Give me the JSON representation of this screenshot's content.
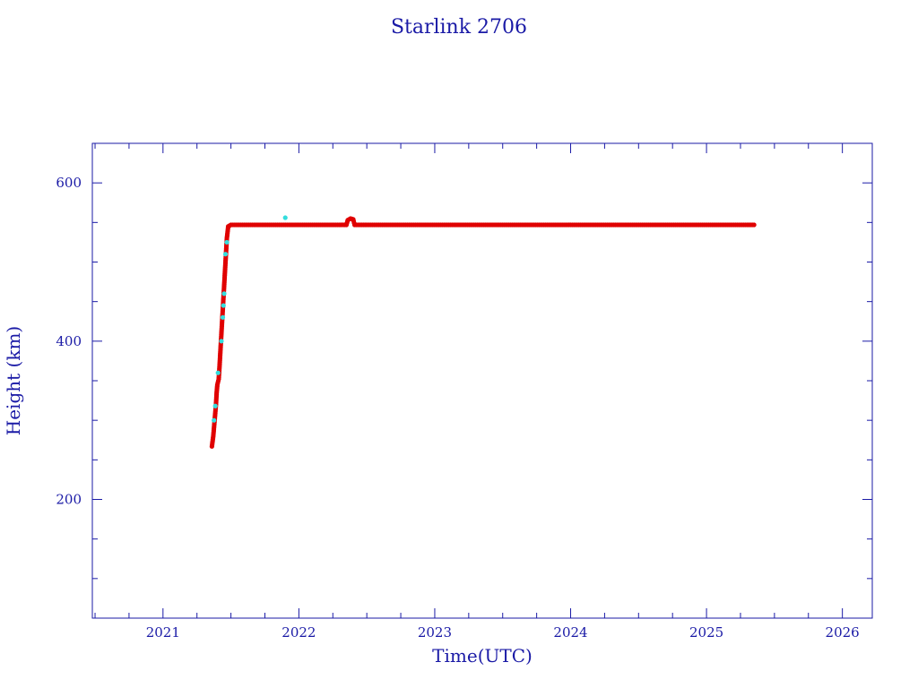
{
  "chart_data": {
    "type": "scatter",
    "title": "Starlink 2706",
    "xlabel": "Time(UTC)",
    "ylabel": "Height (km)",
    "xlim": [
      2020.48,
      2026.22
    ],
    "ylim": [
      50,
      650
    ],
    "x_ticks": [
      2021,
      2022,
      2023,
      2024,
      2025,
      2026
    ],
    "y_ticks": [
      200,
      400,
      600
    ],
    "grid": false,
    "colors": {
      "axis": "#1a1aa6",
      "primary": "#e00000",
      "secondary": "#33dddd"
    },
    "series": [
      {
        "color": "#e00000",
        "points": [
          [
            2021.36,
            267
          ],
          [
            2021.37,
            280
          ],
          [
            2021.38,
            300
          ],
          [
            2021.39,
            320
          ],
          [
            2021.395,
            335
          ],
          [
            2021.4,
            345
          ],
          [
            2021.41,
            352
          ],
          [
            2021.415,
            365
          ],
          [
            2021.42,
            380
          ],
          [
            2021.425,
            395
          ],
          [
            2021.43,
            410
          ],
          [
            2021.435,
            425
          ],
          [
            2021.44,
            440
          ],
          [
            2021.445,
            455
          ],
          [
            2021.45,
            470
          ],
          [
            2021.455,
            485
          ],
          [
            2021.46,
            500
          ],
          [
            2021.465,
            515
          ],
          [
            2021.47,
            530
          ],
          [
            2021.48,
            545
          ],
          [
            2021.5,
            547
          ],
          [
            2021.6,
            547
          ],
          [
            2021.7,
            547
          ],
          [
            2021.8,
            547
          ],
          [
            2021.9,
            547
          ],
          [
            2022.0,
            547
          ],
          [
            2022.1,
            547
          ],
          [
            2022.2,
            547
          ],
          [
            2022.3,
            547
          ],
          [
            2022.35,
            547
          ],
          [
            2022.36,
            553
          ],
          [
            2022.38,
            555
          ],
          [
            2022.4,
            554
          ],
          [
            2022.41,
            547
          ],
          [
            2022.5,
            547
          ],
          [
            2022.6,
            547
          ],
          [
            2022.7,
            547
          ],
          [
            2022.8,
            547
          ],
          [
            2022.9,
            547
          ],
          [
            2023.0,
            547
          ],
          [
            2023.1,
            547
          ],
          [
            2023.2,
            547
          ],
          [
            2023.3,
            547
          ],
          [
            2023.4,
            547
          ],
          [
            2023.5,
            547
          ],
          [
            2023.6,
            547
          ],
          [
            2023.7,
            547
          ],
          [
            2023.8,
            547
          ],
          [
            2023.9,
            547
          ],
          [
            2024.0,
            547
          ],
          [
            2024.1,
            547
          ],
          [
            2024.2,
            547
          ],
          [
            2024.3,
            547
          ],
          [
            2024.4,
            547
          ],
          [
            2024.5,
            547
          ],
          [
            2024.6,
            547
          ],
          [
            2024.7,
            547
          ],
          [
            2024.8,
            547
          ],
          [
            2024.9,
            547
          ],
          [
            2025.0,
            547
          ],
          [
            2025.1,
            547
          ],
          [
            2025.2,
            547
          ],
          [
            2025.3,
            547
          ],
          [
            2025.35,
            547
          ]
        ]
      },
      {
        "color": "#33dddd",
        "points": [
          [
            2021.375,
            300
          ],
          [
            2021.385,
            318
          ],
          [
            2021.405,
            360
          ],
          [
            2021.43,
            400
          ],
          [
            2021.44,
            430
          ],
          [
            2021.445,
            445
          ],
          [
            2021.45,
            460
          ],
          [
            2021.46,
            510
          ],
          [
            2021.47,
            525
          ],
          [
            2021.9,
            556
          ]
        ]
      }
    ]
  }
}
